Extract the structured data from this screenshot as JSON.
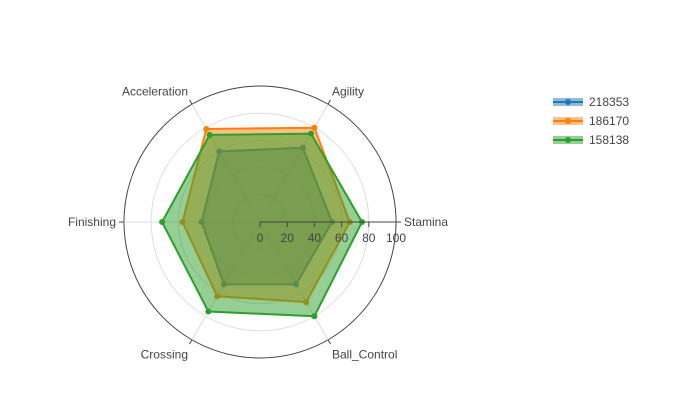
{
  "chart_data": {
    "type": "radar",
    "title": "",
    "axes": [
      "Stamina",
      "Agility",
      "Acceleration",
      "Finishing",
      "Crossing",
      "Ball_Control"
    ],
    "range": [
      0,
      100
    ],
    "radial_ticks": [
      0,
      20,
      40,
      60,
      80,
      100
    ],
    "grid": true,
    "legend_position": "top-right",
    "series": [
      {
        "name": "218353",
        "color": "#1f77b4",
        "values": [
          53,
          63,
          60,
          43,
          53,
          53
        ]
      },
      {
        "name": "186170",
        "color": "#ff7f0e",
        "values": [
          66,
          80,
          79,
          57,
          63,
          68
        ]
      },
      {
        "name": "158138",
        "color": "#2ca02c",
        "values": [
          75,
          75,
          74,
          72,
          76,
          80
        ]
      }
    ]
  }
}
